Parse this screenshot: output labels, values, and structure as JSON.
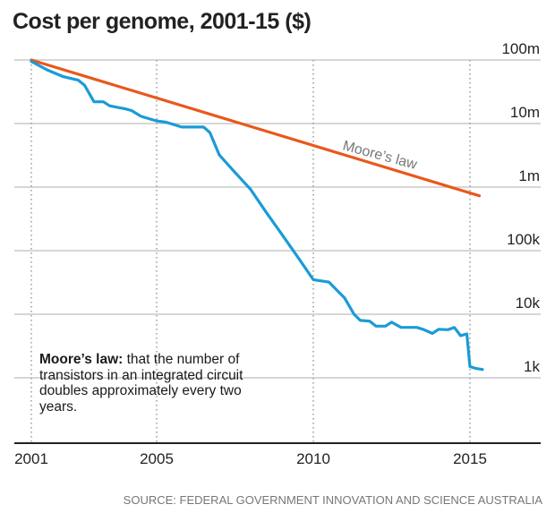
{
  "chart_data": {
    "type": "line",
    "title": "Cost per genome, 2001-15 ($)",
    "xlabel": "",
    "ylabel": "",
    "y_scale": "log",
    "xlim": [
      2000.9,
      2016.5
    ],
    "ylim": [
      100,
      100000000
    ],
    "x_ticks": [
      2001,
      2005,
      2010,
      2015
    ],
    "x_tick_labels": [
      "2001",
      "2005",
      "2010",
      "2015"
    ],
    "y_ticks": [
      1000,
      10000,
      100000,
      1000000,
      10000000,
      100000000
    ],
    "y_tick_labels": [
      "1k",
      "10k",
      "100k",
      "1m",
      "10m",
      "100m"
    ],
    "grid": {
      "x": "dotted",
      "y": "solid"
    },
    "series": [
      {
        "name": "",
        "color": "#1a9bd7",
        "x": [
          2001.0,
          2001.5,
          2002.0,
          2002.5,
          2002.7,
          2003.0,
          2003.3,
          2003.5,
          2004.0,
          2004.2,
          2004.5,
          2005.0,
          2005.3,
          2005.8,
          2006.0,
          2006.5,
          2006.7,
          2007.0,
          2007.5,
          2008.0,
          2008.5,
          2009.0,
          2009.5,
          2010.0,
          2010.5,
          2011.0,
          2011.3,
          2011.5,
          2011.8,
          2012.0,
          2012.3,
          2012.5,
          2012.8,
          2013.0,
          2013.3,
          2013.5,
          2013.8,
          2014.0,
          2014.3,
          2014.5,
          2014.7,
          2014.9,
          2015.0,
          2015.2,
          2015.4
        ],
        "values": [
          95000000,
          70000000,
          55000000,
          48000000,
          40000000,
          22000000,
          22000000,
          19000000,
          17000000,
          16000000,
          13000000,
          11000000,
          10500000,
          8800000,
          8800000,
          8800000,
          7200000,
          3200000,
          1700000,
          920000,
          400000,
          180000,
          80000,
          35000,
          32000,
          18000,
          10000,
          8000,
          7800,
          6500,
          6500,
          7500,
          6200,
          6200,
          6200,
          5800,
          5000,
          5800,
          5700,
          6200,
          4600,
          4900,
          1500,
          1400,
          1350
        ]
      },
      {
        "name": "Moore's law",
        "color": "#e8581c",
        "x": [
          2001.0,
          2015.3
        ],
        "values": [
          100000000,
          730000
        ]
      }
    ],
    "annotations": [
      "Moore’s law"
    ]
  },
  "title": "Cost per genome, 2001-15 ($)",
  "note": {
    "term": "Moore’s law:",
    "text": " that the number of transistors in an integrated circuit doubles approximately every two years."
  },
  "source": "SOURCE: FEDERAL GOVERNMENT INNOVATION AND SCIENCE AUSTRALIA",
  "colors": {
    "grid": "#c8c8c8",
    "axis": "#222222",
    "text": "#222222",
    "annotation": "#777777"
  }
}
